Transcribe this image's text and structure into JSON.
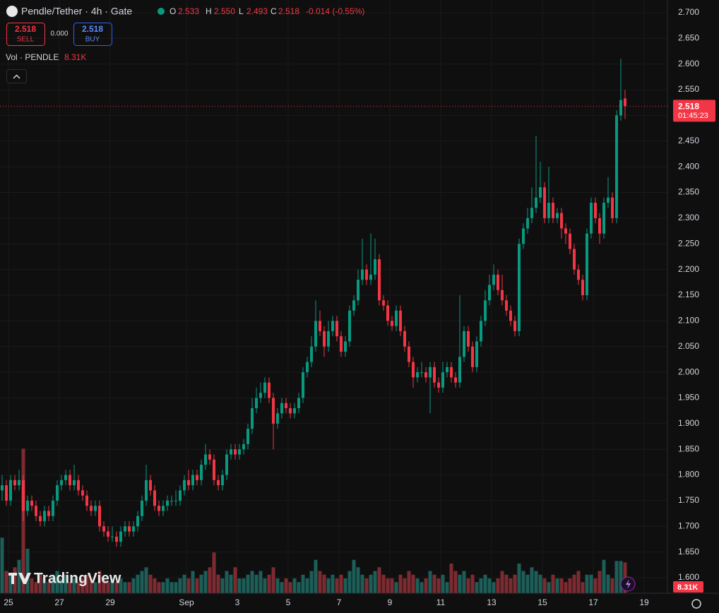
{
  "header": {
    "symbol": "Pendle/Tether · 4h · Gate",
    "o_label": "O",
    "o": "2.533",
    "h_label": "H",
    "h": "2.550",
    "l_label": "L",
    "l": "2.493",
    "c_label": "C",
    "c": "2.518",
    "change": "-0.014 (-0.55%)"
  },
  "trade": {
    "sell_price": "2.518",
    "sell": "SELL",
    "spread": "0.000",
    "buy_price": "2.518",
    "buy": "BUY"
  },
  "volume_legend": {
    "title": "Vol · PENDLE",
    "value": "8.31K"
  },
  "last_price": {
    "price": "2.518",
    "countdown": "01:45:23"
  },
  "brand": "TradingView",
  "chart_data": {
    "type": "candlestick",
    "up_color": "#089981",
    "down_color": "#f23645",
    "grid": true,
    "ylim": [
      1.5698,
      2.7247
    ],
    "yticks": [
      {
        "value": 1.6,
        "label": "1.600"
      },
      {
        "value": 1.65,
        "label": "1.650"
      },
      {
        "value": 1.7,
        "label": "1.700"
      },
      {
        "value": 1.75,
        "label": "1.750"
      },
      {
        "value": 1.8,
        "label": "1.800"
      },
      {
        "value": 1.85,
        "label": "1.850"
      },
      {
        "value": 1.9,
        "label": "1.900"
      },
      {
        "value": 1.95,
        "label": "1.950"
      },
      {
        "value": 2.0,
        "label": "2.000"
      },
      {
        "value": 2.05,
        "label": "2.050"
      },
      {
        "value": 2.1,
        "label": "2.100"
      },
      {
        "value": 2.15,
        "label": "2.150"
      },
      {
        "value": 2.2,
        "label": "2.200"
      },
      {
        "value": 2.25,
        "label": "2.250"
      },
      {
        "value": 2.3,
        "label": "2.300"
      },
      {
        "value": 2.35,
        "label": "2.350"
      },
      {
        "value": 2.4,
        "label": "2.400"
      },
      {
        "value": 2.45,
        "label": "2.450"
      },
      {
        "value": 2.5,
        "label": "2.500"
      },
      {
        "value": 2.55,
        "label": "2.550"
      },
      {
        "value": 2.6,
        "label": "2.600"
      },
      {
        "value": 2.65,
        "label": "2.650"
      },
      {
        "value": 2.7,
        "label": "2.700"
      }
    ],
    "xlim": [
      -0.5,
      157
    ],
    "xticks": [
      {
        "value": 1.5,
        "label": "25"
      },
      {
        "value": 13.5,
        "label": "27"
      },
      {
        "value": 25.5,
        "label": "29"
      },
      {
        "value": 43.5,
        "label": "Sep"
      },
      {
        "value": 55.5,
        "label": "3"
      },
      {
        "value": 67.5,
        "label": "5"
      },
      {
        "value": 79.5,
        "label": "7"
      },
      {
        "value": 91.5,
        "label": "9"
      },
      {
        "value": 103.5,
        "label": "11"
      },
      {
        "value": 115.5,
        "label": "13"
      },
      {
        "value": 127.5,
        "label": "15"
      },
      {
        "value": 139.5,
        "label": "17"
      },
      {
        "value": 151.5,
        "label": "19"
      }
    ],
    "values": [
      [
        1.77,
        1.8,
        1.75,
        1.78
      ],
      [
        1.78,
        1.79,
        1.74,
        1.75
      ],
      [
        1.75,
        1.8,
        1.74,
        1.79
      ],
      [
        1.79,
        1.8,
        1.77,
        1.78
      ],
      [
        1.78,
        1.81,
        1.77,
        1.79
      ],
      [
        1.79,
        1.8,
        1.71,
        1.73
      ],
      [
        1.73,
        1.76,
        1.72,
        1.75
      ],
      [
        1.75,
        1.76,
        1.73,
        1.74
      ],
      [
        1.74,
        1.75,
        1.71,
        1.72
      ],
      [
        1.72,
        1.73,
        1.7,
        1.71
      ],
      [
        1.71,
        1.74,
        1.7,
        1.73
      ],
      [
        1.73,
        1.74,
        1.71,
        1.72
      ],
      [
        1.72,
        1.76,
        1.71,
        1.75
      ],
      [
        1.75,
        1.79,
        1.74,
        1.78
      ],
      [
        1.78,
        1.8,
        1.77,
        1.79
      ],
      [
        1.79,
        1.81,
        1.78,
        1.8
      ],
      [
        1.8,
        1.81,
        1.77,
        1.78
      ],
      [
        1.78,
        1.82,
        1.77,
        1.79
      ],
      [
        1.79,
        1.8,
        1.76,
        1.77
      ],
      [
        1.77,
        1.78,
        1.75,
        1.76
      ],
      [
        1.76,
        1.77,
        1.73,
        1.74
      ],
      [
        1.74,
        1.75,
        1.72,
        1.73
      ],
      [
        1.73,
        1.75,
        1.72,
        1.74
      ],
      [
        1.74,
        1.75,
        1.69,
        1.7
      ],
      [
        1.7,
        1.71,
        1.68,
        1.69
      ],
      [
        1.69,
        1.7,
        1.67,
        1.68
      ],
      [
        1.68,
        1.7,
        1.67,
        1.68
      ],
      [
        1.68,
        1.69,
        1.66,
        1.67
      ],
      [
        1.67,
        1.7,
        1.66,
        1.69
      ],
      [
        1.69,
        1.71,
        1.68,
        1.7
      ],
      [
        1.7,
        1.71,
        1.68,
        1.69
      ],
      [
        1.69,
        1.71,
        1.68,
        1.7
      ],
      [
        1.7,
        1.73,
        1.69,
        1.72
      ],
      [
        1.72,
        1.76,
        1.71,
        1.75
      ],
      [
        1.75,
        1.82,
        1.74,
        1.79
      ],
      [
        1.79,
        1.8,
        1.76,
        1.77
      ],
      [
        1.77,
        1.78,
        1.73,
        1.74
      ],
      [
        1.74,
        1.75,
        1.72,
        1.73
      ],
      [
        1.73,
        1.75,
        1.72,
        1.74
      ],
      [
        1.74,
        1.76,
        1.73,
        1.75
      ],
      [
        1.75,
        1.76,
        1.74,
        1.75
      ],
      [
        1.75,
        1.77,
        1.74,
        1.75
      ],
      [
        1.75,
        1.78,
        1.74,
        1.77
      ],
      [
        1.77,
        1.8,
        1.76,
        1.79
      ],
      [
        1.79,
        1.81,
        1.77,
        1.78
      ],
      [
        1.78,
        1.81,
        1.77,
        1.8
      ],
      [
        1.8,
        1.81,
        1.78,
        1.79
      ],
      [
        1.79,
        1.83,
        1.78,
        1.82
      ],
      [
        1.82,
        1.86,
        1.81,
        1.84
      ],
      [
        1.84,
        1.85,
        1.82,
        1.83
      ],
      [
        1.83,
        1.84,
        1.78,
        1.79
      ],
      [
        1.79,
        1.8,
        1.77,
        1.78
      ],
      [
        1.78,
        1.81,
        1.77,
        1.8
      ],
      [
        1.8,
        1.85,
        1.79,
        1.84
      ],
      [
        1.84,
        1.86,
        1.83,
        1.85
      ],
      [
        1.85,
        1.86,
        1.83,
        1.84
      ],
      [
        1.84,
        1.86,
        1.83,
        1.85
      ],
      [
        1.85,
        1.87,
        1.84,
        1.86
      ],
      [
        1.86,
        1.9,
        1.85,
        1.89
      ],
      [
        1.89,
        1.95,
        1.88,
        1.93
      ],
      [
        1.93,
        1.97,
        1.92,
        1.95
      ],
      [
        1.95,
        1.98,
        1.94,
        1.96
      ],
      [
        1.96,
        1.99,
        1.95,
        1.98
      ],
      [
        1.98,
        1.99,
        1.94,
        1.95
      ],
      [
        1.95,
        1.96,
        1.85,
        1.9
      ],
      [
        1.9,
        1.93,
        1.89,
        1.92
      ],
      [
        1.92,
        1.95,
        1.91,
        1.94
      ],
      [
        1.94,
        1.95,
        1.92,
        1.93
      ],
      [
        1.93,
        1.94,
        1.91,
        1.92
      ],
      [
        1.92,
        1.94,
        1.91,
        1.93
      ],
      [
        1.93,
        1.96,
        1.92,
        1.95
      ],
      [
        1.95,
        2.01,
        1.94,
        2.0
      ],
      [
        2.0,
        2.03,
        1.99,
        2.02
      ],
      [
        2.02,
        2.07,
        2.01,
        2.05
      ],
      [
        2.05,
        2.14,
        2.04,
        2.1
      ],
      [
        2.1,
        2.12,
        2.07,
        2.08
      ],
      [
        2.08,
        2.09,
        2.03,
        2.05
      ],
      [
        2.05,
        2.1,
        2.04,
        2.08
      ],
      [
        2.08,
        2.11,
        2.07,
        2.1
      ],
      [
        2.1,
        2.11,
        2.06,
        2.07
      ],
      [
        2.07,
        2.08,
        2.03,
        2.04
      ],
      [
        2.04,
        2.07,
        2.03,
        2.06
      ],
      [
        2.06,
        2.13,
        2.05,
        2.12
      ],
      [
        2.12,
        2.15,
        2.11,
        2.14
      ],
      [
        2.14,
        2.2,
        2.13,
        2.18
      ],
      [
        2.18,
        2.26,
        2.17,
        2.2
      ],
      [
        2.2,
        2.21,
        2.17,
        2.18
      ],
      [
        2.18,
        2.27,
        2.17,
        2.19
      ],
      [
        2.19,
        2.26,
        2.18,
        2.22
      ],
      [
        2.22,
        2.23,
        2.13,
        2.14
      ],
      [
        2.14,
        2.15,
        2.12,
        2.13
      ],
      [
        2.13,
        2.14,
        2.09,
        2.1
      ],
      [
        2.1,
        2.11,
        2.08,
        2.09
      ],
      [
        2.09,
        2.13,
        2.08,
        2.12
      ],
      [
        2.12,
        2.13,
        2.07,
        2.08
      ],
      [
        2.08,
        2.09,
        2.04,
        2.05
      ],
      [
        2.05,
        2.06,
        2.01,
        2.02
      ],
      [
        2.02,
        2.03,
        1.97,
        1.99
      ],
      [
        1.99,
        2.01,
        1.98,
        2.0
      ],
      [
        2.0,
        2.02,
        1.99,
        2.0
      ],
      [
        2.0,
        2.01,
        1.98,
        1.99
      ],
      [
        1.99,
        2.02,
        1.92,
        2.01
      ],
      [
        2.01,
        2.02,
        1.97,
        1.98
      ],
      [
        1.98,
        1.99,
        1.96,
        1.97
      ],
      [
        1.97,
        2.02,
        1.96,
        2.0
      ],
      [
        2.0,
        2.02,
        1.99,
        2.01
      ],
      [
        2.01,
        2.02,
        1.98,
        1.99
      ],
      [
        1.99,
        2.0,
        1.97,
        1.98
      ],
      [
        1.98,
        2.15,
        1.97,
        2.03
      ],
      [
        2.03,
        2.09,
        2.02,
        2.08
      ],
      [
        2.08,
        2.09,
        2.04,
        2.05
      ],
      [
        2.05,
        2.06,
        2.0,
        2.01
      ],
      [
        2.01,
        2.07,
        2.0,
        2.06
      ],
      [
        2.06,
        2.11,
        2.05,
        2.1
      ],
      [
        2.1,
        2.16,
        2.09,
        2.14
      ],
      [
        2.14,
        2.19,
        2.13,
        2.17
      ],
      [
        2.17,
        2.21,
        2.16,
        2.19
      ],
      [
        2.19,
        2.2,
        2.15,
        2.16
      ],
      [
        2.16,
        2.19,
        2.13,
        2.14
      ],
      [
        2.14,
        2.15,
        2.11,
        2.12
      ],
      [
        2.12,
        2.13,
        2.09,
        2.1
      ],
      [
        2.1,
        2.11,
        2.07,
        2.08
      ],
      [
        2.08,
        2.26,
        2.07,
        2.25
      ],
      [
        2.25,
        2.29,
        2.24,
        2.28
      ],
      [
        2.28,
        2.32,
        2.27,
        2.3
      ],
      [
        2.3,
        2.36,
        2.29,
        2.32
      ],
      [
        2.32,
        2.46,
        2.31,
        2.34
      ],
      [
        2.34,
        2.41,
        2.33,
        2.36
      ],
      [
        2.36,
        2.37,
        2.29,
        2.3
      ],
      [
        2.3,
        2.4,
        2.29,
        2.33
      ],
      [
        2.33,
        2.34,
        2.29,
        2.3
      ],
      [
        2.3,
        2.32,
        2.29,
        2.31
      ],
      [
        2.31,
        2.32,
        2.26,
        2.28
      ],
      [
        2.28,
        2.29,
        2.25,
        2.27
      ],
      [
        2.27,
        2.28,
        2.23,
        2.24
      ],
      [
        2.24,
        2.25,
        2.19,
        2.2
      ],
      [
        2.2,
        2.21,
        2.17,
        2.18
      ],
      [
        2.18,
        2.19,
        2.14,
        2.15
      ],
      [
        2.15,
        2.28,
        2.14,
        2.27
      ],
      [
        2.27,
        2.34,
        2.26,
        2.33
      ],
      [
        2.33,
        2.34,
        2.29,
        2.3
      ],
      [
        2.3,
        2.31,
        2.25,
        2.27
      ],
      [
        2.27,
        2.34,
        2.26,
        2.33
      ],
      [
        2.33,
        2.38,
        2.32,
        2.34
      ],
      [
        2.34,
        2.35,
        2.29,
        2.3
      ],
      [
        2.3,
        2.51,
        2.29,
        2.5
      ],
      [
        2.5,
        2.61,
        2.49,
        2.53
      ],
      [
        2.533,
        2.55,
        2.493,
        2.518
      ]
    ],
    "volume": {
      "vlim": [
        0,
        40
      ],
      "up_color": "#1d5e58",
      "down_color": "#7d2b31",
      "values": [
        15,
        6,
        5,
        7,
        9,
        39,
        12,
        4,
        3,
        5,
        4,
        3,
        5,
        6,
        4,
        5,
        3,
        4,
        3,
        4,
        5,
        4,
        3,
        6,
        4,
        3,
        4,
        3,
        4,
        3,
        3,
        4,
        5,
        6,
        7,
        5,
        4,
        3,
        3,
        4,
        3,
        3,
        4,
        5,
        4,
        6,
        4,
        5,
        6,
        7,
        11,
        5,
        4,
        6,
        5,
        7,
        4,
        4,
        5,
        6,
        5,
        6,
        4,
        5,
        7,
        4,
        3,
        4,
        3,
        4,
        3,
        5,
        4,
        6,
        9,
        6,
        5,
        4,
        5,
        4,
        5,
        4,
        6,
        9,
        7,
        5,
        4,
        5,
        6,
        7,
        5,
        4,
        4,
        3,
        5,
        4,
        6,
        5,
        4,
        3,
        4,
        6,
        5,
        4,
        5,
        3,
        8,
        6,
        5,
        6,
        4,
        5,
        3,
        4,
        5,
        4,
        3,
        4,
        6,
        5,
        4,
        5,
        8,
        6,
        5,
        7,
        6,
        5,
        4,
        3,
        5,
        4,
        4,
        3,
        4,
        5,
        6,
        3,
        5,
        5,
        4,
        6,
        9,
        5,
        4,
        8.7,
        8.7,
        8.31
      ]
    }
  }
}
